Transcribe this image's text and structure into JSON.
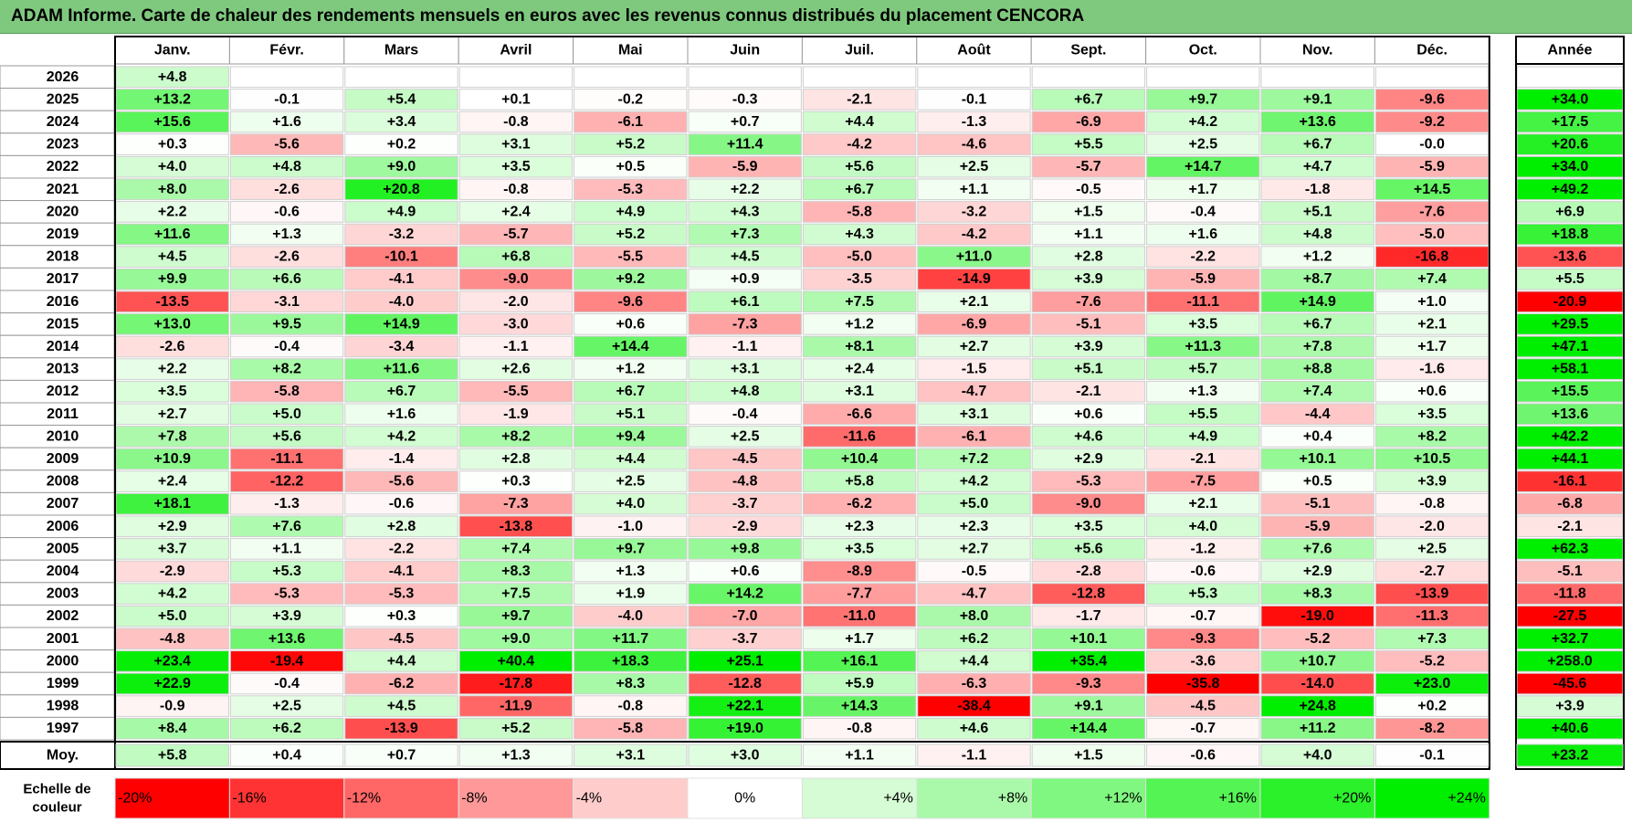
{
  "title": "ADAM Informe. Carte de chaleur des rendements mensuels en euros avec les revenus connus distribués du placement CENCORA",
  "chart_data": {
    "type": "heatmap",
    "title": "ADAM Informe. Carte de chaleur des rendements mensuels en euros avec les revenus connus distribués du placement CENCORA",
    "columns": [
      "Janv.",
      "Févr.",
      "Mars",
      "Avril",
      "Mai",
      "Juin",
      "Juil.",
      "Août",
      "Sept.",
      "Oct.",
      "Nov.",
      "Déc."
    ],
    "annual_label": "Année",
    "years": [
      "2026",
      "2025",
      "2024",
      "2023",
      "2022",
      "2021",
      "2020",
      "2019",
      "2018",
      "2017",
      "2016",
      "2015",
      "2014",
      "2013",
      "2012",
      "2011",
      "2010",
      "2009",
      "2008",
      "2007",
      "2006",
      "2005",
      "2004",
      "2003",
      "2002",
      "2001",
      "2000",
      "1999",
      "1998",
      "1997"
    ],
    "values": [
      [
        4.8,
        null,
        null,
        null,
        null,
        null,
        null,
        null,
        null,
        null,
        null,
        null
      ],
      [
        13.2,
        -0.1,
        5.4,
        0.1,
        -0.2,
        -0.3,
        -2.1,
        -0.1,
        6.7,
        9.7,
        9.1,
        -9.6
      ],
      [
        15.6,
        1.6,
        3.4,
        -0.8,
        -6.1,
        0.7,
        4.4,
        -1.3,
        -6.9,
        4.2,
        13.6,
        -9.2
      ],
      [
        0.3,
        -5.6,
        0.2,
        3.1,
        5.2,
        11.4,
        -4.2,
        -4.6,
        5.5,
        2.5,
        6.7,
        -0.0
      ],
      [
        4.0,
        4.8,
        9.0,
        3.5,
        0.5,
        -5.9,
        5.6,
        2.5,
        -5.7,
        14.7,
        4.7,
        -5.9
      ],
      [
        8.0,
        -2.6,
        20.8,
        -0.8,
        -5.3,
        2.2,
        6.7,
        1.1,
        -0.5,
        1.7,
        -1.8,
        14.5
      ],
      [
        2.2,
        -0.6,
        4.9,
        2.4,
        4.9,
        4.3,
        -5.8,
        -3.2,
        1.5,
        -0.4,
        5.1,
        -7.6
      ],
      [
        11.6,
        1.3,
        -3.2,
        -5.7,
        5.2,
        7.3,
        4.3,
        -4.2,
        1.1,
        1.6,
        4.8,
        -5.0
      ],
      [
        4.5,
        -2.6,
        -10.1,
        6.8,
        -5.5,
        4.5,
        -5.0,
        11.0,
        2.8,
        -2.2,
        1.2,
        -16.8
      ],
      [
        9.9,
        6.6,
        -4.1,
        -9.0,
        9.2,
        0.9,
        -3.5,
        -14.9,
        3.9,
        -5.9,
        8.7,
        7.4
      ],
      [
        -13.5,
        -3.1,
        -4.0,
        -2.0,
        -9.6,
        6.1,
        7.5,
        2.1,
        -7.6,
        -11.1,
        14.9,
        1.0
      ],
      [
        13.0,
        9.5,
        14.9,
        -3.0,
        0.6,
        -7.3,
        1.2,
        -6.9,
        -5.1,
        3.5,
        6.7,
        2.1
      ],
      [
        -2.6,
        -0.4,
        -3.4,
        -1.1,
        14.4,
        -1.1,
        8.1,
        2.7,
        3.9,
        11.3,
        7.8,
        1.7
      ],
      [
        2.2,
        8.2,
        11.6,
        2.6,
        1.2,
        3.1,
        2.4,
        -1.5,
        5.1,
        5.7,
        8.8,
        -1.6
      ],
      [
        3.5,
        -5.8,
        6.7,
        -5.5,
        6.7,
        4.8,
        3.1,
        -4.7,
        -2.1,
        1.3,
        7.4,
        0.6
      ],
      [
        2.7,
        5.0,
        1.6,
        -1.9,
        5.1,
        -0.4,
        -6.6,
        3.1,
        0.6,
        5.5,
        -4.4,
        3.5
      ],
      [
        7.8,
        5.6,
        4.2,
        8.2,
        9.4,
        2.5,
        -11.6,
        -6.1,
        4.6,
        4.9,
        0.4,
        8.2
      ],
      [
        10.9,
        -11.1,
        -1.4,
        2.8,
        4.4,
        -4.5,
        10.4,
        7.2,
        2.9,
        -2.1,
        10.1,
        10.5
      ],
      [
        2.4,
        -12.2,
        -5.6,
        0.3,
        2.5,
        -4.8,
        5.8,
        4.2,
        -5.3,
        -7.5,
        0.5,
        3.9
      ],
      [
        18.1,
        -1.3,
        -0.6,
        -7.3,
        4.0,
        -3.7,
        -6.2,
        5.0,
        -9.0,
        2.1,
        -5.1,
        -0.8
      ],
      [
        2.9,
        7.6,
        2.8,
        -13.8,
        -1.0,
        -2.9,
        2.3,
        2.3,
        3.5,
        4.0,
        -5.9,
        -2.0
      ],
      [
        3.7,
        1.1,
        -2.2,
        7.4,
        9.7,
        9.8,
        3.5,
        2.7,
        5.6,
        -1.2,
        7.6,
        2.5
      ],
      [
        -2.9,
        5.3,
        -4.1,
        8.3,
        1.3,
        0.6,
        -8.9,
        -0.5,
        -2.8,
        -0.6,
        2.9,
        -2.7
      ],
      [
        4.2,
        -5.3,
        -5.3,
        7.5,
        1.9,
        14.2,
        -7.7,
        -4.7,
        -12.8,
        5.3,
        8.3,
        -13.9
      ],
      [
        5.0,
        3.9,
        0.3,
        9.7,
        -4.0,
        -7.0,
        -11.0,
        8.0,
        -1.7,
        -0.7,
        -19.0,
        -11.3
      ],
      [
        -4.8,
        13.6,
        -4.5,
        9.0,
        11.7,
        -3.7,
        1.7,
        6.2,
        10.1,
        -9.3,
        -5.2,
        7.3
      ],
      [
        23.4,
        -19.4,
        4.4,
        40.4,
        18.3,
        25.1,
        16.1,
        4.4,
        35.4,
        -3.6,
        10.7,
        -5.2
      ],
      [
        22.9,
        -0.4,
        -6.2,
        -17.8,
        8.3,
        -12.8,
        5.9,
        -6.3,
        -9.3,
        -35.8,
        -14.0,
        23.0
      ],
      [
        -0.9,
        2.5,
        4.5,
        -11.9,
        -0.8,
        22.1,
        14.3,
        -38.4,
        9.1,
        -4.5,
        24.8,
        0.2
      ],
      [
        8.4,
        6.2,
        -13.9,
        5.2,
        -5.8,
        19.0,
        -0.8,
        4.6,
        14.4,
        -0.7,
        11.2,
        -8.2
      ]
    ],
    "annual": [
      null,
      34.0,
      17.5,
      20.6,
      34.0,
      49.2,
      6.9,
      18.8,
      -13.6,
      5.5,
      -20.9,
      29.5,
      47.1,
      58.1,
      15.5,
      13.6,
      42.2,
      44.1,
      -16.1,
      -6.8,
      -2.1,
      62.3,
      -5.1,
      -11.8,
      -27.5,
      32.7,
      258.0,
      -45.6,
      3.9,
      40.6
    ],
    "average_label": "Moy.",
    "averages": [
      5.8,
      0.4,
      0.7,
      1.3,
      3.1,
      3.0,
      1.1,
      -1.1,
      1.5,
      -0.6,
      4.0,
      -0.1
    ],
    "average_annual": 23.2,
    "scale_label": "Echelle de couleur",
    "scale": [
      {
        "label": "-20%",
        "value": -20
      },
      {
        "label": "-16%",
        "value": -16
      },
      {
        "label": "-12%",
        "value": -12
      },
      {
        "label": "-8%",
        "value": -8
      },
      {
        "label": "-4%",
        "value": -4
      },
      {
        "label": "0%",
        "value": 0
      },
      {
        "label": "+4%",
        "value": 4
      },
      {
        "label": "+8%",
        "value": 8
      },
      {
        "label": "+12%",
        "value": 12
      },
      {
        "label": "+16%",
        "value": 16
      },
      {
        "label": "+20%",
        "value": 20
      },
      {
        "label": "+24%",
        "value": 24
      }
    ],
    "colors": {
      "title_bg": "#7fc97f",
      "max_red": "#ff0000",
      "max_green": "#00ee00",
      "neutral": "#ffffff",
      "border": "#999999"
    }
  }
}
